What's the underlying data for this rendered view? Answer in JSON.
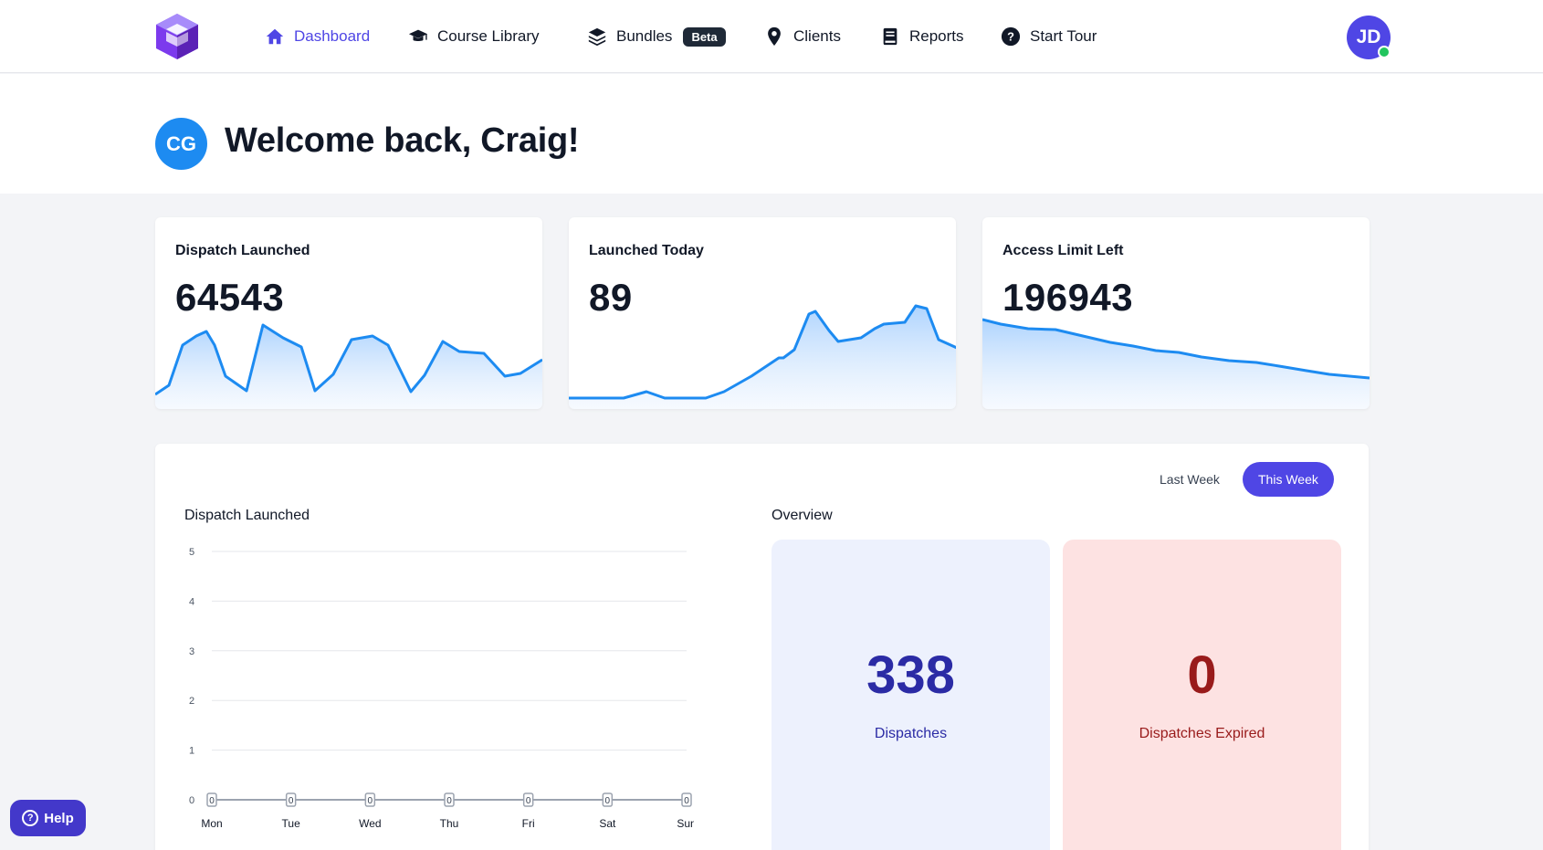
{
  "nav": {
    "items": [
      {
        "label": "Dashboard",
        "icon": "home-icon"
      },
      {
        "label": "Course Library",
        "icon": "graduation-cap-icon"
      },
      {
        "label": "Bundles",
        "icon": "layers-icon",
        "badge": "Beta"
      },
      {
        "label": "Clients",
        "icon": "map-pin-icon"
      },
      {
        "label": "Reports",
        "icon": "book-icon"
      },
      {
        "label": "Start Tour",
        "icon": "question-icon"
      }
    ],
    "active": "Dashboard",
    "user_initials": "JD",
    "accent_color": "#4f46e5"
  },
  "welcome": {
    "initials": "CG",
    "title": "Welcome back, Craig!"
  },
  "stats": [
    {
      "label": "Dispatch Launched",
      "value": "64543"
    },
    {
      "label": "Launched Today",
      "value": "89"
    },
    {
      "label": "Access Limit Left",
      "value": "196943"
    }
  ],
  "panel": {
    "toggle_last": "Last Week",
    "toggle_this": "This Week",
    "chart_title": "Dispatch Launched",
    "overview_title": "Overview",
    "overview": [
      {
        "value": "338",
        "label": "Dispatches"
      },
      {
        "value": "0",
        "label": "Dispatches Expired"
      }
    ]
  },
  "chart_data": {
    "type": "line",
    "title": "Dispatch Launched",
    "categories": [
      "Mon",
      "Tue",
      "Wed",
      "Thu",
      "Fri",
      "Sat",
      "Sun"
    ],
    "values": [
      0,
      0,
      0,
      0,
      0,
      0,
      0
    ],
    "yticks": [
      "0",
      "1",
      "2",
      "3",
      "4",
      "5"
    ],
    "ylim": [
      0,
      5
    ],
    "grid": true
  },
  "help_label": "Help"
}
